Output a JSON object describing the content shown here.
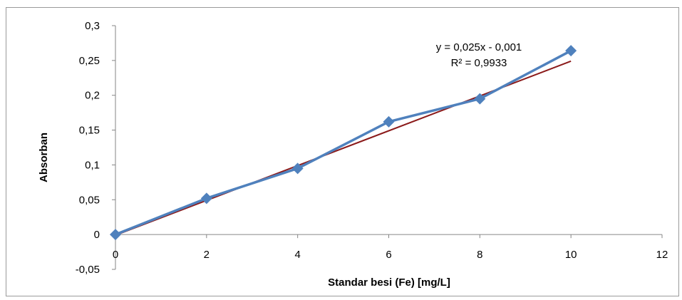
{
  "chart_data": {
    "type": "scatter",
    "xlabel": "Standar besi (Fe) [mg/L]",
    "ylabel": "Absorban",
    "xlim": [
      0,
      12
    ],
    "ylim": [
      -0.05,
      0.3
    ],
    "x_ticks": [
      "0",
      "2",
      "4",
      "6",
      "8",
      "10",
      "12"
    ],
    "y_ticks": [
      "0,3",
      "0,25",
      "0,2",
      "0,15",
      "0,1",
      "0,05",
      "0",
      "-0,05"
    ],
    "x_tick_values": [
      0,
      2,
      4,
      6,
      8,
      10,
      12
    ],
    "y_tick_values": [
      0.3,
      0.25,
      0.2,
      0.15,
      0.1,
      0.05,
      0,
      -0.05
    ],
    "grid": false,
    "series": [
      {
        "x": [
          0,
          2,
          4,
          6,
          8,
          10
        ],
        "y": [
          0,
          0.052,
          0.095,
          0.162,
          0.195,
          0.264
        ],
        "color": "#4f81bd",
        "marker": "diamond"
      }
    ],
    "trendline": {
      "slope": 0.025,
      "intercept": -0.001,
      "x_range": [
        0,
        10
      ],
      "color": "#8b1a1a",
      "equation": "y = 0,025x - 0,001",
      "r_squared": "R² = 0,9933"
    }
  }
}
